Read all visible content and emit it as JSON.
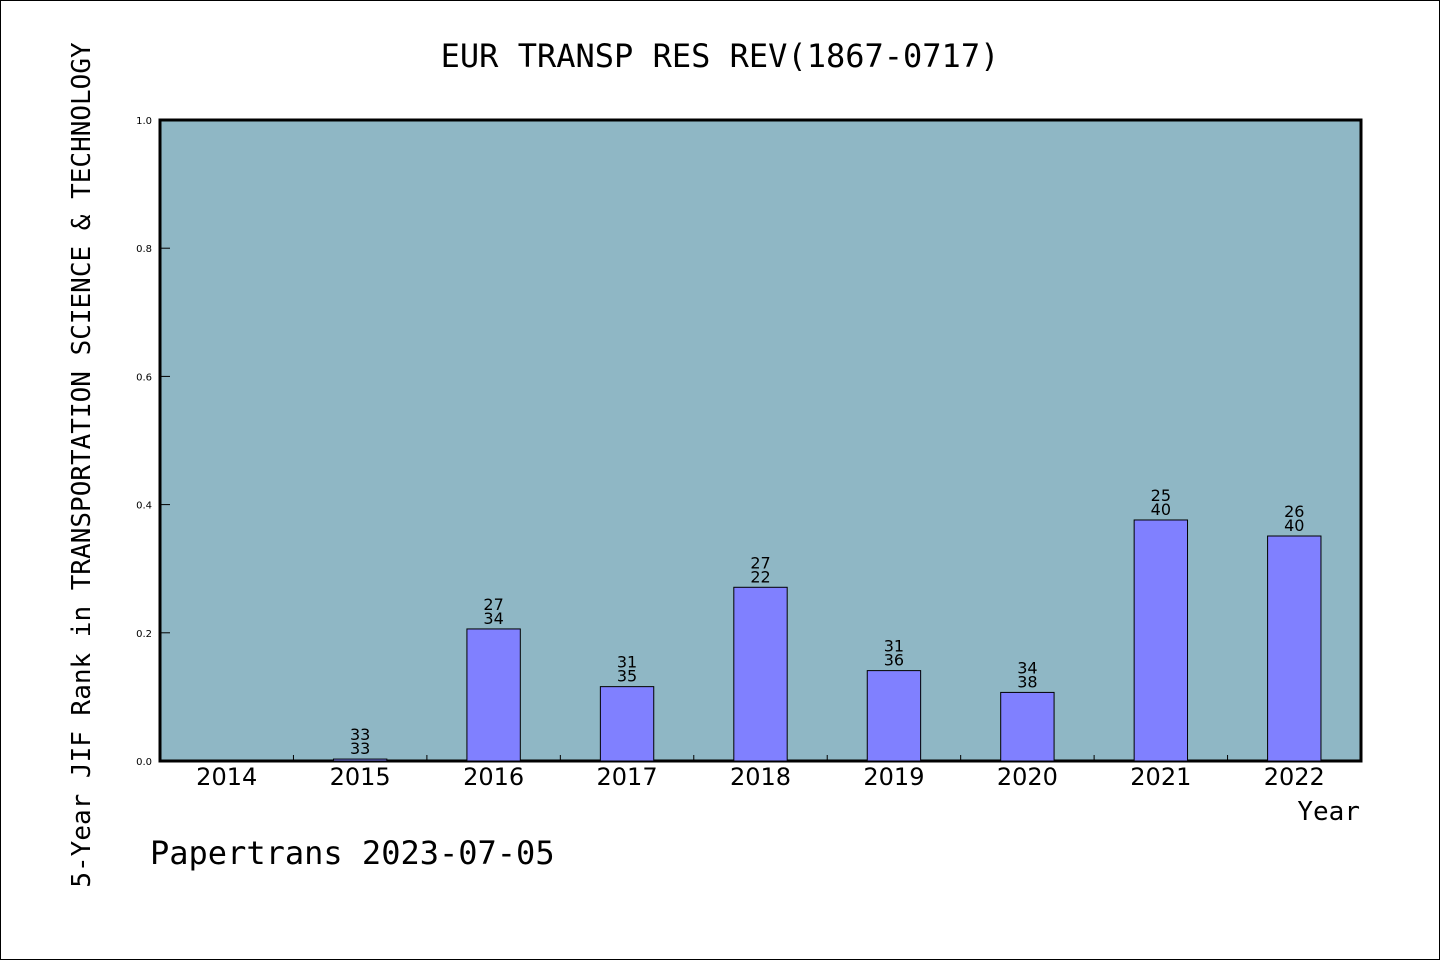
{
  "chart_data": {
    "type": "bar",
    "title": "EUR TRANSP RES REV(1867-0717)",
    "xlabel": "Year",
    "ylabel": "5-Year JIF Rank in TRANSPORTATION SCIENCE & TECHNOLOGY",
    "ylim": [
      0,
      1.0
    ],
    "yticks": [
      "0.0",
      "0.2",
      "0.4",
      "0.6",
      "0.8",
      "1.0"
    ],
    "categories": [
      "2014",
      "2015",
      "2016",
      "2017",
      "2018",
      "2019",
      "2020",
      "2021",
      "2022"
    ],
    "values": [
      null,
      0.003,
      0.206,
      0.116,
      0.271,
      0.141,
      0.107,
      0.376,
      0.351
    ],
    "labels_top": [
      "",
      "33",
      "27",
      "31",
      "27",
      "31",
      "34",
      "25",
      "26"
    ],
    "labels_bottom": [
      "",
      "33",
      "34",
      "35",
      "22",
      "36",
      "38",
      "40",
      "40"
    ],
    "plot_bg_color": "#8fb7c5",
    "bar_color": "#8080ff",
    "grid": false
  },
  "footer": {
    "credit": "Papertrans 2023-07-05"
  }
}
